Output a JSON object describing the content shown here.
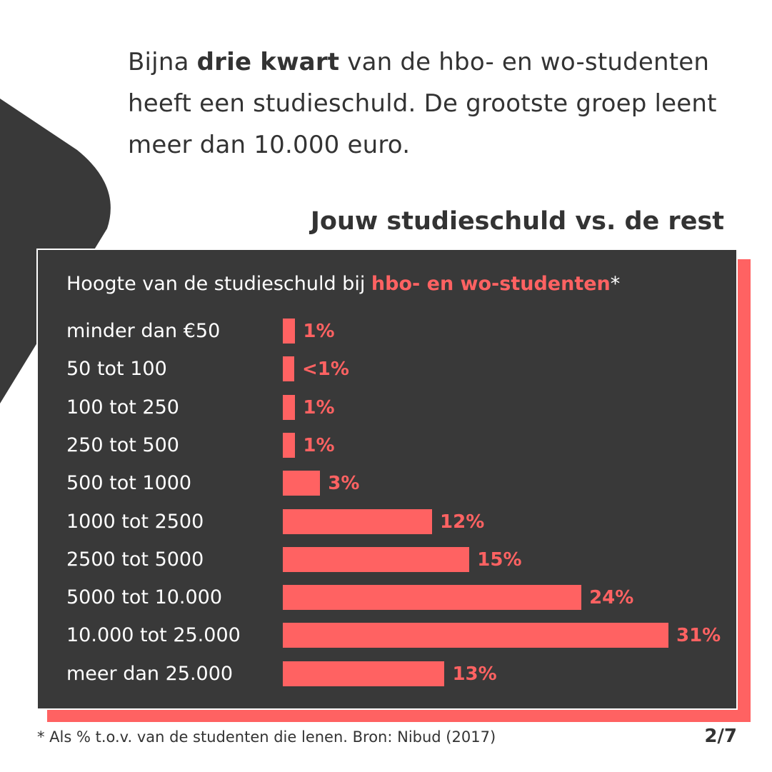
{
  "intro": {
    "before": "Bijna ",
    "bold": "drie kwart",
    "after": " van de hbo- en wo-studenten heeft een studieschuld. De grootste groep leent meer dan 10.000 euro."
  },
  "heading": "Jouw studieschuld vs. de rest",
  "panel": {
    "title_prefix": "Hoogte van de studieschuld bij ",
    "title_highlight": "hbo- en wo-studenten",
    "title_suffix": "*"
  },
  "footnote": "* Als % t.o.v. van de studenten die lenen. Bron: Nibud (2017)",
  "pager": "2/7",
  "colors": {
    "accent": "#ff6262",
    "dark": "#393939",
    "text": "#333333"
  },
  "chart_data": {
    "type": "bar",
    "orientation": "horizontal",
    "title": "Hoogte van de studieschuld bij hbo- en wo-studenten*",
    "categories": [
      "minder dan €50",
      "50 tot 100",
      "100 tot 250",
      "250 tot 500",
      "500 tot 1000",
      "1000 tot 2500",
      "2500 tot 5000",
      "5000 tot 10.000",
      "10.000 tot 25.000",
      "meer dan 25.000"
    ],
    "values": [
      1,
      0.5,
      1,
      1,
      3,
      12,
      15,
      24,
      31,
      13
    ],
    "value_labels": [
      "1%",
      "<1%",
      "1%",
      "1%",
      "3%",
      "12%",
      "15%",
      "24%",
      "31%",
      "13%"
    ],
    "xlim": [
      0,
      31
    ],
    "grid": false
  }
}
